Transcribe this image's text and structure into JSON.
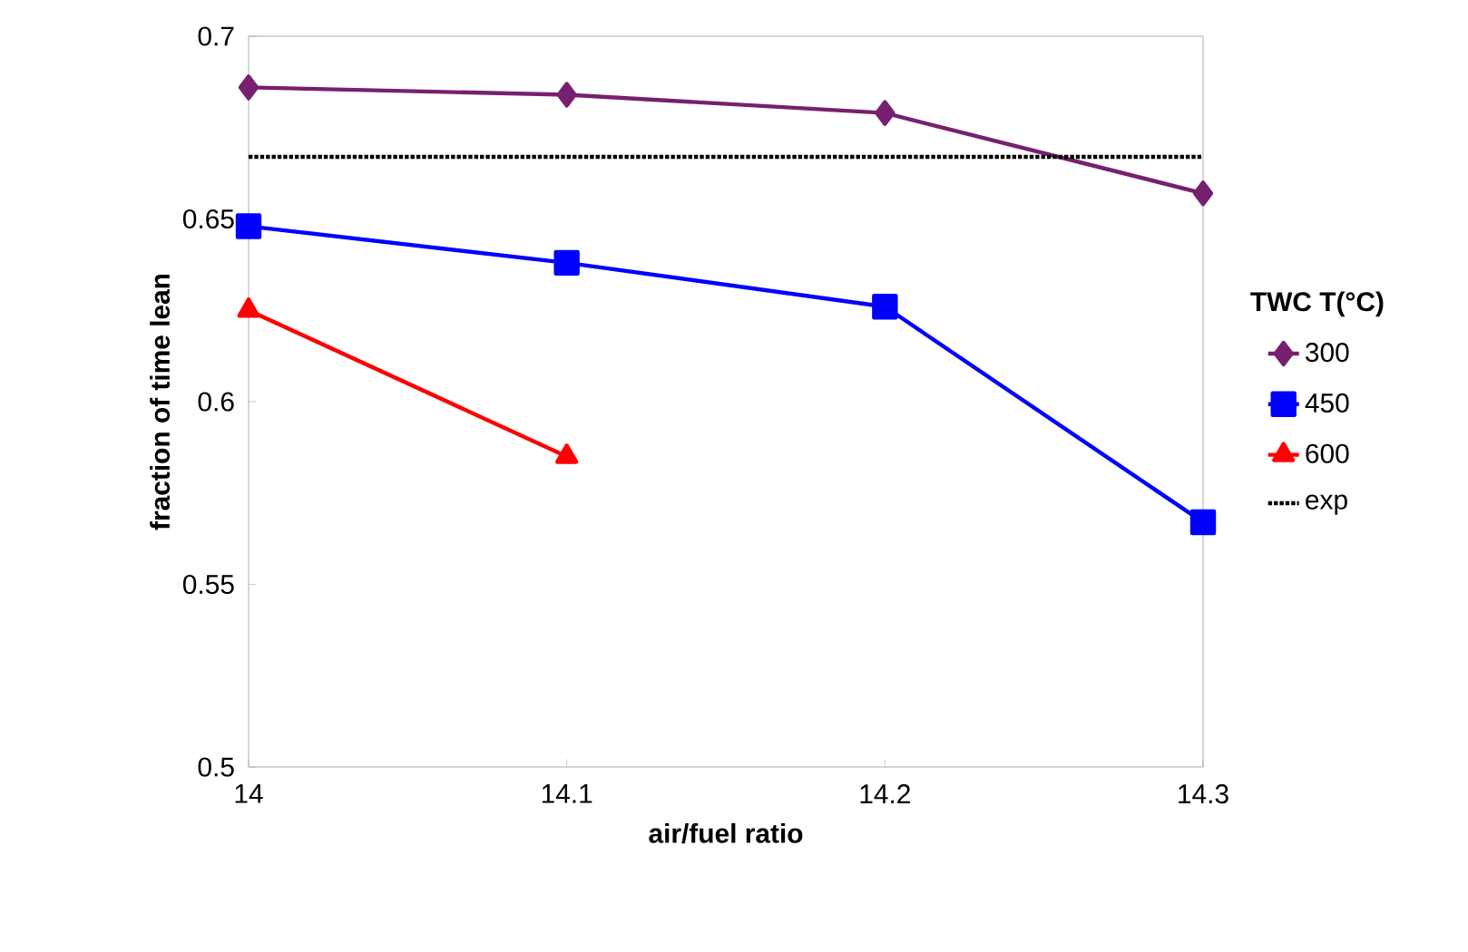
{
  "chart_data": {
    "type": "line",
    "xlabel": "air/fuel ratio",
    "ylabel": "fraction of time lean",
    "legend_title": "TWC T(°C)",
    "x": [
      14,
      14.1,
      14.2,
      14.3
    ],
    "series": [
      {
        "name": "300",
        "color": "#77206f",
        "marker": "diamond",
        "line_style": "solid",
        "values": [
          0.686,
          0.684,
          0.679,
          0.657
        ]
      },
      {
        "name": "450",
        "color": "#0000ff",
        "marker": "square",
        "line_style": "solid",
        "values": [
          0.648,
          0.638,
          0.626,
          0.567
        ]
      },
      {
        "name": "600",
        "color": "#ff0000",
        "marker": "triangle",
        "line_style": "solid",
        "values": [
          0.625,
          0.585,
          null,
          null
        ]
      },
      {
        "name": "exp",
        "color": "#000000",
        "marker": "none",
        "line_style": "dotted",
        "values": [
          0.667,
          0.667,
          0.667,
          0.667
        ]
      }
    ],
    "xlim": [
      14,
      14.3
    ],
    "xticks": [
      14,
      14.1,
      14.2,
      14.3
    ],
    "ylim": [
      0.5,
      0.7
    ],
    "yticks": [
      0.5,
      0.55,
      0.6,
      0.65,
      0.7
    ],
    "grid": false,
    "legend": "right"
  }
}
